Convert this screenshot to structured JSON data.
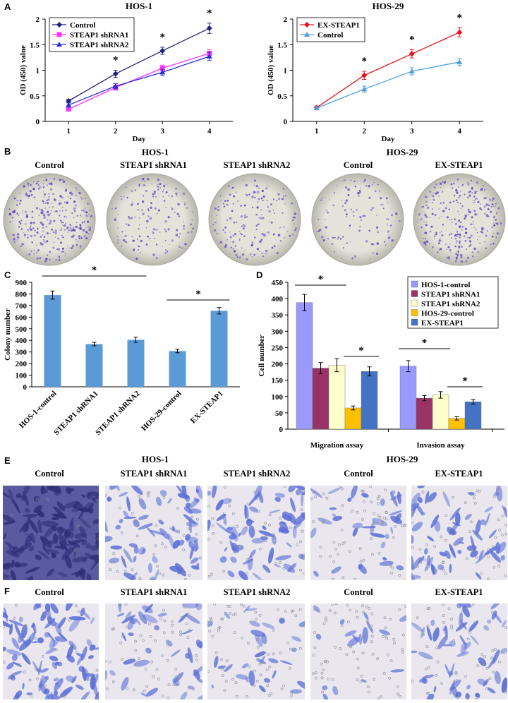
{
  "panels": {
    "A": "A",
    "B": "B",
    "C": "C",
    "D": "D",
    "E": "E",
    "F": "F"
  },
  "section_titles": {
    "hos1": "HOS-1",
    "hos29": "HOS-29"
  },
  "group_labels": [
    "Control",
    "STEAP1 shRNA1",
    "STEAP1 shRNA2",
    "Control",
    "EX-STEAP1"
  ],
  "significance_marker": "*",
  "colors": {
    "navy": "#1f1f7a",
    "magenta": "#ff33ff",
    "blue": "#2b2bd6",
    "red": "#e8141c",
    "lightblue": "#4f9fe0",
    "bar_c": "#5b9bd5",
    "d_hos1": "#9999ff",
    "d_sh1": "#993366",
    "d_sh2": "#ffffcc",
    "d_hos29": "#ffc000",
    "d_ex": "#4472c4",
    "crystal": "#6a4fc0",
    "plate": "#d9d8cf"
  },
  "chart_data": [
    {
      "id": "A-left",
      "type": "line",
      "title": "HOS-1",
      "xlabel": "Day",
      "ylabel": "OD (450) value",
      "x": [
        1,
        2,
        3,
        4
      ],
      "xlim": [
        0.5,
        4.5
      ],
      "ylim": [
        0,
        2
      ],
      "yticks": [
        "0",
        "0.5",
        "1",
        "1.5",
        "2"
      ],
      "legend_position": "top-left",
      "series": [
        {
          "name": "Control",
          "values": [
            0.4,
            0.93,
            1.38,
            1.82
          ],
          "errors": [
            0.03,
            0.07,
            0.07,
            0.1
          ],
          "color": "#1f1f7a",
          "marker": "diamond"
        },
        {
          "name": "STEAP1 shRNA1",
          "values": [
            0.24,
            0.66,
            1.04,
            1.33
          ],
          "errors": [
            0.04,
            0.05,
            0.06,
            0.07
          ],
          "color": "#ff33ff",
          "marker": "square"
        },
        {
          "name": "STEAP1 shRNA2",
          "values": [
            0.32,
            0.69,
            0.96,
            1.27
          ],
          "errors": [
            0.04,
            0.05,
            0.06,
            0.08
          ],
          "color": "#2b2bd6",
          "marker": "triangle"
        }
      ],
      "significant_x": [
        2,
        3,
        4
      ]
    },
    {
      "id": "A-right",
      "type": "line",
      "title": "HOS-29",
      "xlabel": "Day",
      "ylabel": "OD (450) value",
      "x": [
        1,
        2,
        3,
        4
      ],
      "xlim": [
        0.5,
        4.5
      ],
      "ylim": [
        0,
        2
      ],
      "yticks": [
        "0",
        "0.5",
        "1",
        "1.5",
        "2"
      ],
      "legend_position": "top-left",
      "series": [
        {
          "name": "EX-STEAP1",
          "values": [
            0.27,
            0.9,
            1.32,
            1.74
          ],
          "errors": [
            0.03,
            0.08,
            0.08,
            0.09
          ],
          "color": "#e8141c",
          "marker": "diamond"
        },
        {
          "name": "Control",
          "values": [
            0.26,
            0.63,
            0.98,
            1.16
          ],
          "errors": [
            0.03,
            0.06,
            0.07,
            0.07
          ],
          "color": "#4f9fe0",
          "marker": "triangle"
        }
      ],
      "significant_x": [
        2,
        3,
        4
      ]
    },
    {
      "id": "C",
      "type": "bar",
      "ylabel": "Colony number",
      "categories": [
        "HOS-1-control",
        "STEAP1 shRNA1",
        "STEAP1 shRNA2",
        "HOS-29-control",
        "EX-STEAP1"
      ],
      "values": [
        790,
        368,
        405,
        308,
        655
      ],
      "errors": [
        35,
        15,
        22,
        15,
        28
      ],
      "ylim": [
        0,
        900
      ],
      "yticks": [
        "0",
        "100",
        "200",
        "300",
        "400",
        "500",
        "600",
        "700",
        "800",
        "900"
      ],
      "color": "#5b9bd5",
      "significance": [
        {
          "from": 0,
          "to": 2,
          "label": "*"
        },
        {
          "from": 3,
          "to": 4,
          "label": "*"
        }
      ]
    },
    {
      "id": "D",
      "type": "bar",
      "ylabel": "Cell number",
      "categories": [
        "Migration assay",
        "Invasion assay"
      ],
      "ylim": [
        0,
        450
      ],
      "yticks": [
        "0",
        "50",
        "100",
        "150",
        "200",
        "250",
        "300",
        "350",
        "400",
        "450"
      ],
      "legend_position": "top-right",
      "series": [
        {
          "name": "HOS-1-control",
          "values": [
            388,
            193
          ],
          "errors": [
            25,
            17
          ],
          "color": "#9999ff"
        },
        {
          "name": "STEAP1 shRNA1",
          "values": [
            187,
            95
          ],
          "errors": [
            17,
            8
          ],
          "color": "#993366"
        },
        {
          "name": "STEAP1 shRNA2",
          "values": [
            196,
            105
          ],
          "errors": [
            20,
            10
          ],
          "color": "#ffffcc"
        },
        {
          "name": "HOS-29-control",
          "values": [
            65,
            33
          ],
          "errors": [
            6,
            5
          ],
          "color": "#ffc000"
        },
        {
          "name": "EX-STEAP1",
          "values": [
            177,
            84
          ],
          "errors": [
            14,
            7
          ],
          "color": "#4472c4"
        }
      ],
      "significance": [
        {
          "group": 0,
          "from": 0,
          "to": 2,
          "label": "*"
        },
        {
          "group": 0,
          "from": 3,
          "to": 4,
          "label": "*"
        },
        {
          "group": 1,
          "from": 0,
          "to": 2,
          "label": "*"
        },
        {
          "group": 1,
          "from": 3,
          "to": 4,
          "label": "*"
        }
      ]
    }
  ]
}
